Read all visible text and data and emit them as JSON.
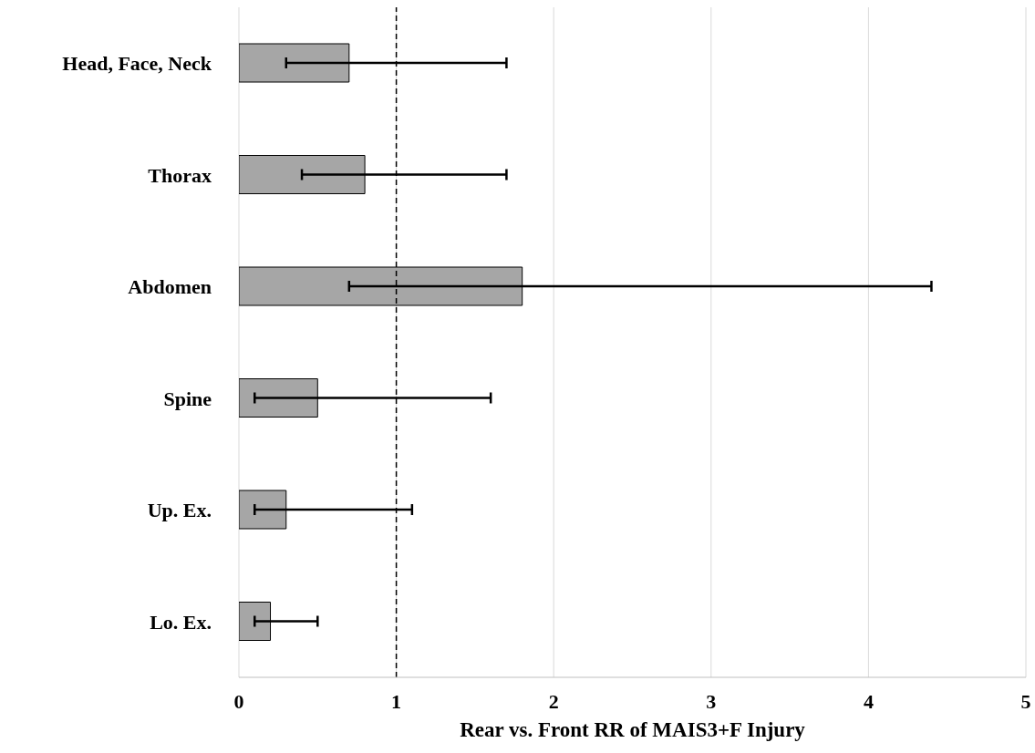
{
  "chart_data": {
    "type": "bar",
    "orientation": "horizontal",
    "xlabel": "Rear vs. Front RR of MAIS3+F Injury",
    "categories": [
      "Head, Face, Neck",
      "Thorax",
      "Abdomen",
      "Spine",
      "Up. Ex.",
      "Lo. Ex."
    ],
    "values": [
      0.7,
      0.8,
      1.8,
      0.5,
      0.3,
      0.2
    ],
    "errors": [
      [
        0.3,
        1.7
      ],
      [
        0.4,
        1.7
      ],
      [
        0.7,
        4.4
      ],
      [
        0.1,
        1.6
      ],
      [
        0.1,
        1.1
      ],
      [
        0.1,
        0.5
      ]
    ],
    "color": "#a6a6a6",
    "xlim": [
      0,
      5
    ],
    "xticks": [
      0,
      1,
      2,
      3,
      4,
      5
    ],
    "grid": "x",
    "ref_lines": [
      {
        "axis": "x",
        "value": 1,
        "line_style": "dashed",
        "color": "#000000"
      }
    ]
  }
}
